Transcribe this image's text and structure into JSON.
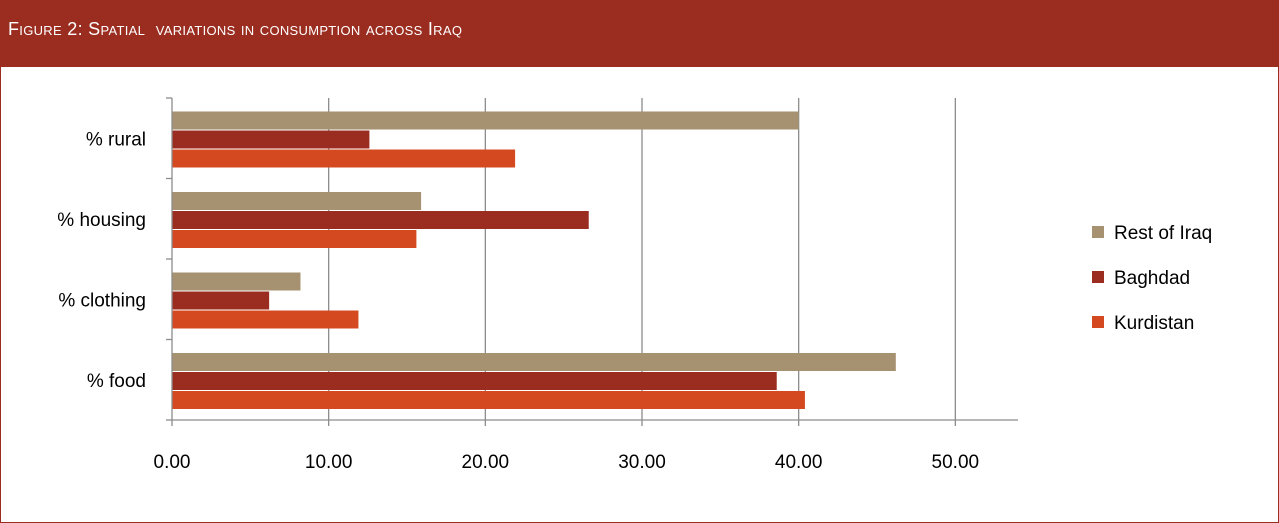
{
  "figure": {
    "title": "Figure 2: Spatial  variations in consumption across Iraq"
  },
  "chart_data": {
    "type": "bar",
    "orientation": "horizontal",
    "categories": [
      "% food",
      "% clothing",
      "% housing",
      "% rural"
    ],
    "series": [
      {
        "name": "Kurdistan",
        "color": "#d4491f",
        "values": [
          40.4,
          11.9,
          15.6,
          21.9
        ]
      },
      {
        "name": "Baghdad",
        "color": "#9b2d20",
        "values": [
          38.6,
          6.2,
          26.6,
          12.6
        ]
      },
      {
        "name": "Rest of Iraq",
        "color": "#a69170",
        "values": [
          46.2,
          8.2,
          15.9,
          40.0
        ]
      }
    ],
    "xlim": [
      0,
      54
    ],
    "xticks": [
      0,
      10,
      20,
      30,
      40,
      50
    ],
    "xtick_labels": [
      "0.00",
      "10.00",
      "20.00",
      "30.00",
      "40.00",
      "50.00"
    ],
    "legend_order": [
      "Rest of Iraq",
      "Baghdad",
      "Kurdistan"
    ],
    "legend_position": "right",
    "grid": "vertical",
    "xlabel": "",
    "ylabel": ""
  }
}
